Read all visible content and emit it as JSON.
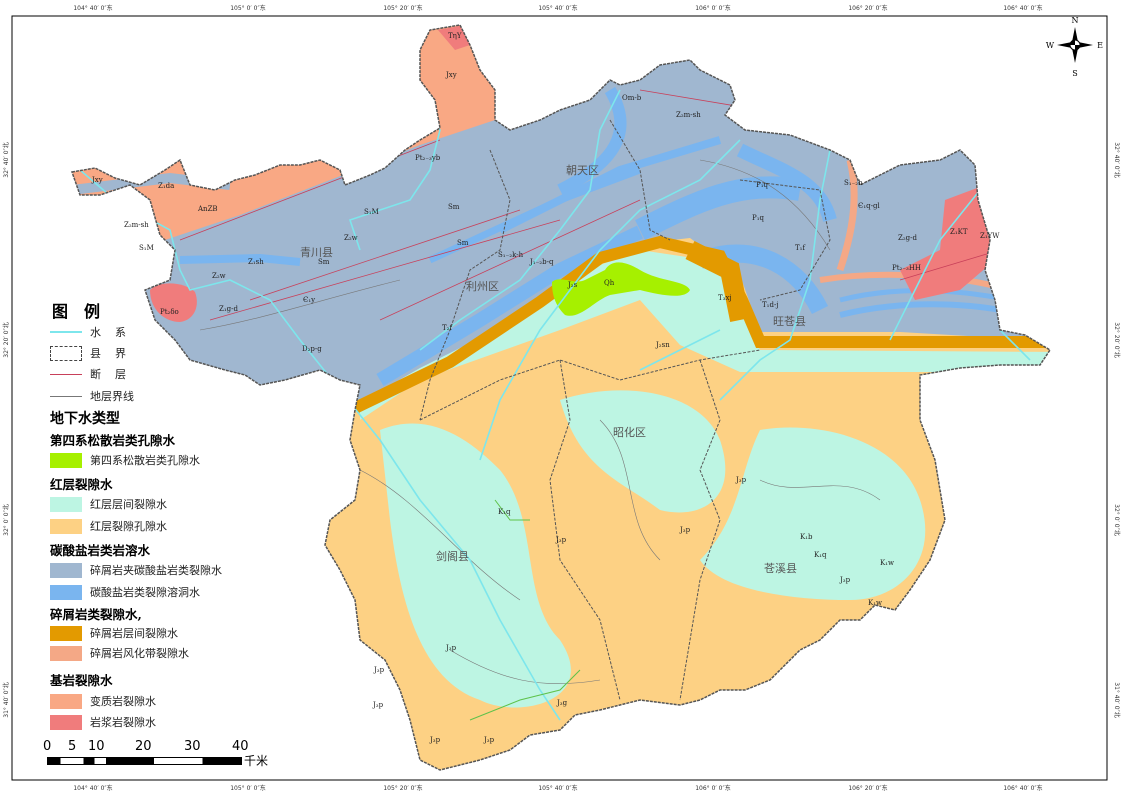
{
  "colors": {
    "quaternary": "#a6f000",
    "red_interlayer": "#bdf5e3",
    "red_pore": "#fdd184",
    "clastic_carbonate": "#a0b7d0",
    "carbonate_karst": "#7ab5ef",
    "clastic_interlayer": "#e39a00",
    "clastic_weathered": "#f4a886",
    "metamorphic": "#f9a884",
    "magmatic": "#f07c7c",
    "river": "#7de6ec",
    "fault": "#c8405a",
    "county_line": "#555555"
  },
  "axes": {
    "top": [
      "104° 40′ 0″东",
      "105° 0′ 0″东",
      "105° 20′ 0″东",
      "105° 40′ 0″东",
      "106° 0′ 0″东",
      "106° 20′ 0″东",
      "106° 40′ 0″东"
    ],
    "left": [
      "32° 40′ 0″北",
      "32° 20′ 0″北",
      "32° 0′ 0″北",
      "31° 40′ 0″北"
    ]
  },
  "compass": {
    "n": "N",
    "s": "S",
    "e": "E",
    "w": "W"
  },
  "counties": [
    "青川县",
    "朝天区",
    "利州区",
    "旺苍县",
    "昭化区",
    "剑阁县",
    "苍溪县"
  ],
  "codes": [
    "TηY",
    "Jxy",
    "Jxy",
    "Z₁da",
    "AnZB",
    "Z₂m-sh",
    "S₁M",
    "Pt₂₋₃yb",
    "S₁M",
    "Z₂w",
    "Sm",
    "Sm",
    "Z₁sh",
    "Sm",
    "Z₂w",
    "Є₁y",
    "Z₁g-d",
    "Pt₂δο",
    "D₂p-g",
    "S₁₋₂k-h",
    "J₁₋₂b-q",
    "T₂f",
    "J₂s",
    "Qh",
    "T₃xj",
    "T₁d-j",
    "P₁q",
    "P₁q",
    "Om-b",
    "Z₂m-sh",
    "S₁₋₂h",
    "Є₁q-gl",
    "Z₂g-d",
    "Z₁KT",
    "Z₁YW",
    "Pt₂₋₃HH",
    "T₁f",
    "J₂sn",
    "J₃p",
    "K₁q",
    "J₃p",
    "J₃p",
    "K₁b",
    "K₁q",
    "K₁w",
    "J₃p",
    "K₁w",
    "J₃p",
    "J₃p",
    "J₃p",
    "J₃p",
    "J₃p",
    "J₃g"
  ],
  "legend": {
    "title": "图例",
    "lines": [
      {
        "label": "水系",
        "type": "river"
      },
      {
        "label": "县界",
        "type": "county"
      },
      {
        "label": "断层",
        "type": "fault"
      },
      {
        "label": "地层界线",
        "type": "boundary"
      }
    ],
    "groundwater_title": "地下水类型",
    "groups": [
      {
        "heading": "第四系松散岩类孔隙水",
        "items": [
          {
            "label": "第四系松散岩类孔隙水",
            "color": "#a6f000"
          }
        ]
      },
      {
        "heading": "红层裂隙水",
        "items": [
          {
            "label": "红层层间裂隙水",
            "color": "#bdf5e3"
          },
          {
            "label": "红层裂隙孔隙水",
            "color": "#fdd184"
          }
        ]
      },
      {
        "heading": "碳酸盐岩类岩溶水",
        "items": [
          {
            "label": "碎屑岩夹碳酸盐岩类裂隙水",
            "color": "#a0b7d0"
          },
          {
            "label": "碳酸盐岩类裂隙溶洞水",
            "color": "#7ab5ef"
          }
        ]
      },
      {
        "heading": "碎屑岩类裂隙水,",
        "items": [
          {
            "label": "碎屑岩层间裂隙水",
            "color": "#e39a00"
          },
          {
            "label": "碎屑岩风化带裂隙水",
            "color": "#f4a886"
          }
        ]
      },
      {
        "heading": "基岩裂隙水",
        "items": [
          {
            "label": "变质岩裂隙水",
            "color": "#f9a884"
          },
          {
            "label": "岩浆岩裂隙水",
            "color": "#f07c7c"
          }
        ]
      }
    ]
  },
  "scale": {
    "ticks": [
      "0",
      "5",
      "10",
      "20",
      "30",
      "40"
    ],
    "unit": "千米"
  }
}
